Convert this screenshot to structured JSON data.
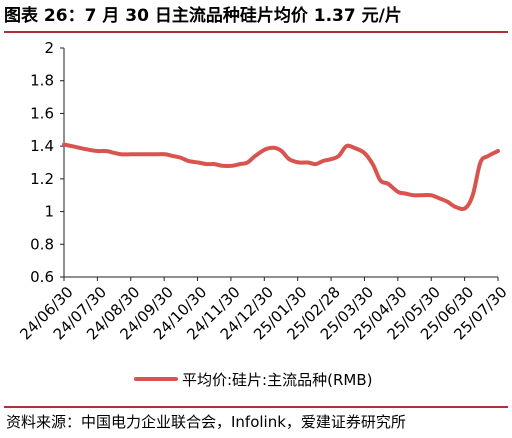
{
  "figure": {
    "title": "图表 26：7 月 30 日主流品种硅片均价 1.37 元/片",
    "source": "资料来源：中国电力企业联合会，Infolink，爱建证券研究所"
  },
  "chart_data": {
    "type": "line",
    "ylim": [
      0.6,
      2
    ],
    "yticks": [
      "2",
      "1.8",
      "1.6",
      "1.4",
      "1.2",
      "1",
      "0.8",
      "0.6"
    ],
    "xticks": [
      "24/06/30",
      "24/07/30",
      "24/08/30",
      "24/09/30",
      "24/10/30",
      "24/11/30",
      "24/12/30",
      "25/01/30",
      "25/02/28",
      "25/03/30",
      "25/04/30",
      "25/05/30",
      "25/06/30",
      "25/07/30"
    ],
    "grid": false,
    "legend_position": "bottom",
    "color": "#d9534f",
    "series": [
      {
        "name": "平均价:硅片:主流品种(RMB)",
        "x": [
          "2024-06-30",
          "2024-07-07",
          "2024-07-14",
          "2024-07-21",
          "2024-07-30",
          "2024-08-07",
          "2024-08-14",
          "2024-08-21",
          "2024-08-30",
          "2024-09-07",
          "2024-09-14",
          "2024-09-21",
          "2024-09-30",
          "2024-10-07",
          "2024-10-14",
          "2024-10-21",
          "2024-10-30",
          "2024-11-07",
          "2024-11-14",
          "2024-11-21",
          "2024-11-30",
          "2024-12-07",
          "2024-12-14",
          "2024-12-21",
          "2024-12-30",
          "2025-01-07",
          "2025-01-14",
          "2025-01-21",
          "2025-01-30",
          "2025-02-07",
          "2025-02-14",
          "2025-02-21",
          "2025-02-28",
          "2025-03-07",
          "2025-03-14",
          "2025-03-21",
          "2025-03-30",
          "2025-04-07",
          "2025-04-14",
          "2025-04-21",
          "2025-04-30",
          "2025-05-07",
          "2025-05-14",
          "2025-05-21",
          "2025-05-30",
          "2025-06-07",
          "2025-06-14",
          "2025-06-21",
          "2025-06-30",
          "2025-07-07",
          "2025-07-14",
          "2025-07-21",
          "2025-07-30"
        ],
        "values": [
          1.41,
          1.4,
          1.39,
          1.38,
          1.37,
          1.37,
          1.36,
          1.35,
          1.35,
          1.35,
          1.35,
          1.35,
          1.35,
          1.34,
          1.33,
          1.31,
          1.3,
          1.29,
          1.29,
          1.28,
          1.28,
          1.29,
          1.3,
          1.34,
          1.38,
          1.39,
          1.37,
          1.32,
          1.3,
          1.3,
          1.29,
          1.31,
          1.32,
          1.34,
          1.4,
          1.39,
          1.36,
          1.29,
          1.19,
          1.17,
          1.12,
          1.11,
          1.1,
          1.1,
          1.1,
          1.08,
          1.06,
          1.03,
          1.02,
          1.1,
          1.3,
          1.34,
          1.37
        ]
      }
    ]
  }
}
